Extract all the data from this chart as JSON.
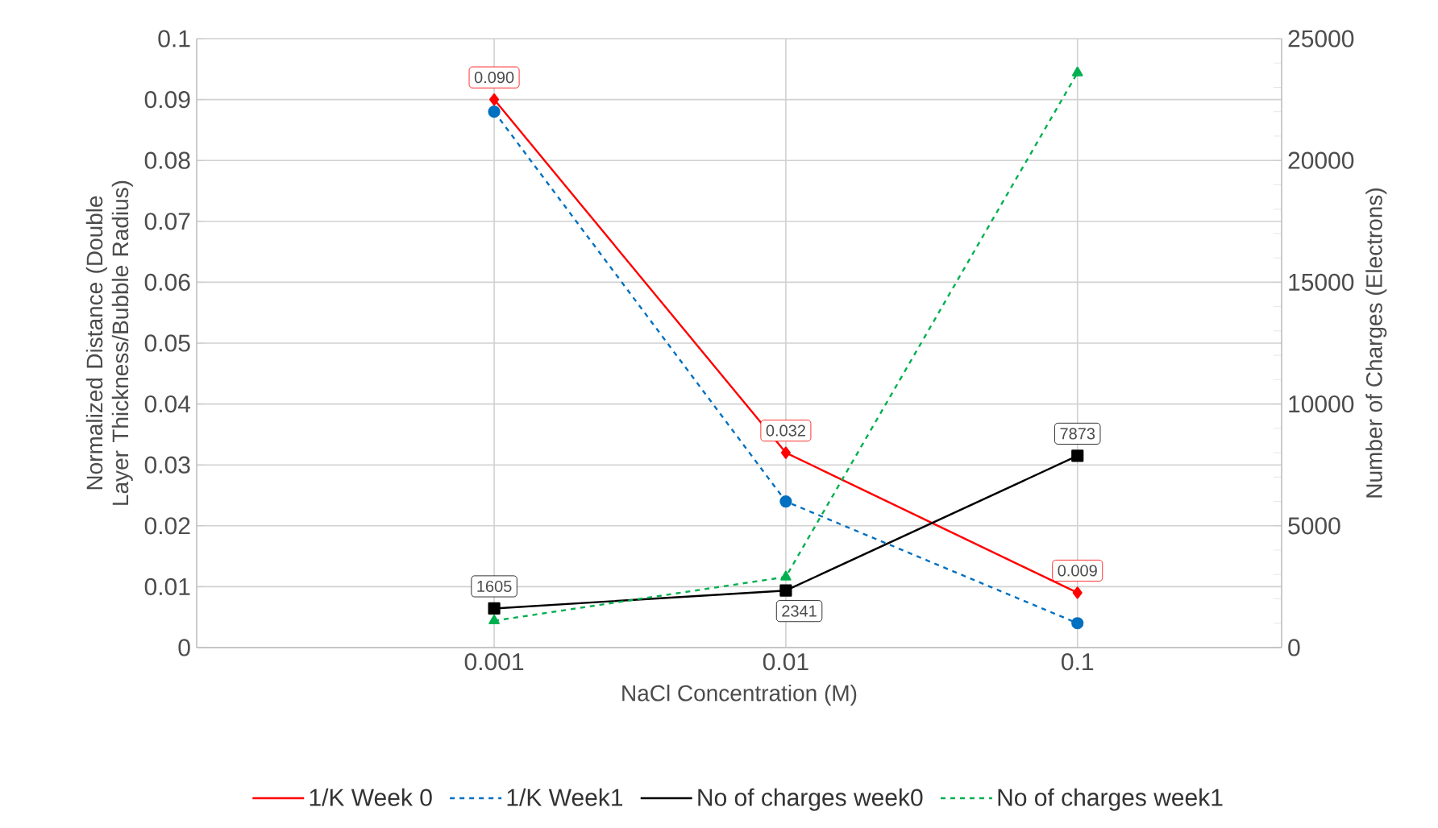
{
  "chart_data": {
    "type": "line",
    "xlabel": "NaCl Concentration (M)",
    "ylabel": "Normalized Distance (Double Layer Thickness/Bubble Radius)",
    "y2label": "Number of Charges (Electrons)",
    "categories": [
      "0.001",
      "0.01",
      "0.1"
    ],
    "series": [
      {
        "name": "1/K  Week 0",
        "color": "#ff0000",
        "values": [
          0.09,
          0.032,
          0.009
        ],
        "value_labels": [
          "0.090",
          "0.032",
          "0.009"
        ],
        "marker": "diamond",
        "line_style": "solid"
      },
      {
        "name": "1/K  Week1",
        "color": "#0070c0",
        "values": [
          0.088,
          0.024,
          0.004
        ],
        "marker": "circle",
        "line_style": "dashed"
      },
      {
        "name": "No of charges  week0",
        "color": "#000000",
        "values": [
          1605,
          2341,
          7873
        ],
        "value_labels": [
          "1605",
          "2341",
          "7873"
        ],
        "marker": "square",
        "line_style": "solid",
        "axis": "y2"
      },
      {
        "name": "No of charges  week1",
        "color": "#00b050",
        "values": [
          1100,
          2900,
          23600
        ],
        "marker": "triangle",
        "line_style": "dashed",
        "axis": "y2"
      }
    ],
    "ylim": [
      0,
      0.1
    ],
    "yticks": [
      0,
      0.01,
      0.02,
      0.03,
      0.04,
      0.05,
      0.06,
      0.07,
      0.08,
      0.09,
      0.1
    ],
    "y2lim": [
      0,
      25000
    ],
    "y2ticks": [
      0,
      5000,
      10000,
      15000,
      20000,
      25000
    ],
    "grid": true,
    "legend": "bottom"
  }
}
